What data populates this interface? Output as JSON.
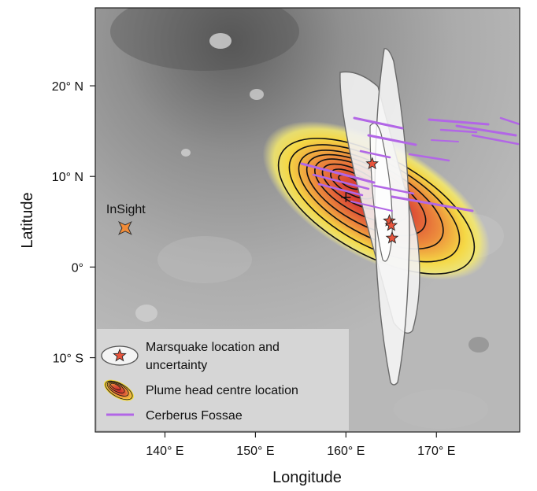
{
  "map": {
    "xlabel": "Longitude",
    "ylabel": "Latitude",
    "x_ticks": [
      {
        "value": 140,
        "label": "140° E"
      },
      {
        "value": 150,
        "label": "150° E"
      },
      {
        "value": 160,
        "label": "160° E"
      },
      {
        "value": 170,
        "label": "170° E"
      }
    ],
    "y_ticks": [
      {
        "value": 20,
        "label": "20° N"
      },
      {
        "value": 10,
        "label": "10° N"
      },
      {
        "value": 0,
        "label": "0°"
      },
      {
        "value": -10,
        "label": "10° S"
      }
    ],
    "lon_range": [
      132.3,
      179.2
    ],
    "lat_range": [
      -18.2,
      28.6
    ],
    "insight": {
      "label": "InSight",
      "lon": 135.6,
      "lat": 4.3
    },
    "plume_center": {
      "lon": 160.0,
      "lat": 7.7
    },
    "marsquakes": [
      {
        "lon": 162.9,
        "lat": 11.4
      },
      {
        "lon": 164.8,
        "lat": 5.1
      },
      {
        "lon": 165.0,
        "lat": 4.6
      },
      {
        "lon": 165.1,
        "lat": 3.2
      }
    ],
    "colors": {
      "cerberus_fossae": "#b266e6",
      "marsquake_star": "#e8543c",
      "insight_marker": "#f28c38",
      "plume_core": "#c8242a",
      "plume_outer": "#f5e13a"
    }
  },
  "legend": {
    "items": [
      {
        "line1": "Marsquake location and",
        "line2": "uncertainty"
      },
      {
        "line1": "Plume head centre location"
      },
      {
        "line1": "Cerberus Fossae"
      }
    ]
  }
}
